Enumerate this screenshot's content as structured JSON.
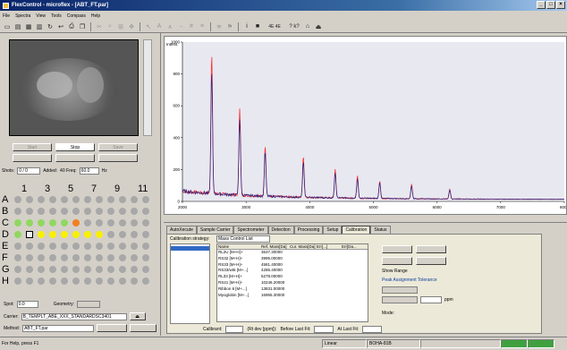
{
  "window": {
    "title": "FlexControl - microflex - [ABT_FT.par]"
  },
  "menu": [
    "File",
    "Spectra",
    "View",
    "Tools",
    "Compass",
    "Help"
  ],
  "toolbar": {
    "icons": [
      "new-icon",
      "open-icon",
      "save-icon",
      "save-all-icon",
      "refresh-icon",
      "back-icon",
      "print-icon",
      "copy-icon",
      "cut-icon",
      "zoom-icon",
      "zoom-fit-icon",
      "pan-icon",
      "cursor-icon",
      "label-icon",
      "peak-icon",
      "arrow-icon",
      "grid-icon",
      "overlay-icon",
      "compare-icon",
      "help-icon",
      "context-help-icon",
      "flag-icon",
      "exit-icon"
    ],
    "zoom_label": "4E 4E",
    "help_label": "? k?"
  },
  "camera_controls": {
    "start_label": "Start",
    "stop_label": "Stop",
    "save_label": "Save",
    "btn4_label": "",
    "btn5_label": "",
    "btn6_label": ""
  },
  "shots": {
    "label": "Shots:",
    "value": "0 / 0",
    "added_label": "Added:",
    "added_value": "40 Freq:",
    "freq_value": "60.0",
    "unit": "Hz"
  },
  "plate": {
    "columns": [
      "1",
      "3",
      "5",
      "7",
      "9",
      "11"
    ],
    "rows": [
      "A",
      "B",
      "C",
      "D",
      "E",
      "F",
      "G",
      "H"
    ],
    "c_green": 5,
    "c_orange_index": 5,
    "d_yellow_from": 2,
    "d_yellow_to": 8
  },
  "left_bottom": {
    "spot_label": "Spot:",
    "spot_value": "0.0",
    "geometry_label": "Geometry:",
    "geometry_value": "",
    "carrier_label": "Carrier:",
    "carrier_value": "B_TEMPLT_ABE_XXX_STANDARDSC3401",
    "method_label": "Method:",
    "method_value": "ABT_FT.par"
  },
  "chart_data": {
    "type": "line",
    "title": "",
    "ylabel": "Intens.",
    "xlabel": "",
    "xlim": [
      2000,
      8000
    ],
    "ylim": [
      0,
      1000
    ],
    "x_ticks": [
      2000,
      3000,
      4000,
      5000,
      6000,
      7000,
      8000
    ],
    "y_ticks": [
      0,
      200,
      400,
      600,
      800,
      1000
    ],
    "series": [
      {
        "name": "",
        "color": "#ff2020",
        "peaks": [
          [
            2460,
            880
          ],
          [
            2900,
            550
          ],
          [
            3300,
            320
          ],
          [
            3900,
            260
          ],
          [
            4400,
            180
          ],
          [
            4750,
            140
          ],
          [
            5100,
            110
          ],
          [
            5600,
            90
          ],
          [
            6200,
            60
          ]
        ]
      },
      {
        "name": "",
        "color": "#202080",
        "peaks": [
          [
            2460,
            760
          ],
          [
            2900,
            480
          ],
          [
            3300,
            280
          ],
          [
            3900,
            220
          ],
          [
            4400,
            160
          ],
          [
            4750,
            120
          ],
          [
            5100,
            100
          ],
          [
            5600,
            80
          ],
          [
            6200,
            55
          ]
        ]
      }
    ]
  },
  "tabs": [
    "AutoXecute",
    "Sample Carrier",
    "Spectrometer",
    "Detection",
    "Processing",
    "Setup",
    "Calibration",
    "Status"
  ],
  "active_tab": 6,
  "calibration": {
    "strategy_label": "Calibration strategy:",
    "strategy_value": "Mass Control List",
    "columns": [
      "Name",
      "Ref. Mass[Da]",
      "Cur. Mass[Da]",
      "Err[...]",
      "Err[Da..."
    ],
    "rows": [
      [
        "RL2U [M+H]+",
        "3637.30000",
        "",
        "",
        ""
      ],
      [
        "RS32 [M+H]+",
        "3995.00000",
        "",
        "",
        ""
      ],
      [
        "RS33 [M+H]+",
        "4581.40000",
        "",
        "",
        ""
      ],
      [
        "RS33/wt6 [M+...]",
        "4285.40000",
        "",
        "",
        ""
      ],
      [
        "RL33 [M+H]+",
        "5278.00000",
        "",
        "",
        ""
      ],
      [
        "RS21 [M+H]+",
        "10246.20000",
        "",
        "",
        ""
      ],
      [
        "Ribbon 8 [M+...]",
        "13831.00000",
        "",
        "",
        ""
      ],
      [
        "Myoglobin [M+...]",
        "16955.30000",
        "",
        "",
        ""
      ]
    ],
    "calibrant_label": "Calibrant:",
    "search_label": "(Rt dev [ppm]):",
    "before_label": "Before Last Fit:",
    "after_label": "At Last Fit:",
    "options_title": "Show Range",
    "peak_assign_label": "Peak Assignment Tolerance",
    "tol1": "",
    "tol2": "",
    "unit": "ppm",
    "mode_label": "Mode:"
  },
  "status": {
    "help": "For Help, press F1",
    "mode": "Linear",
    "instrument": "BOHA-81B",
    "idle": ""
  }
}
